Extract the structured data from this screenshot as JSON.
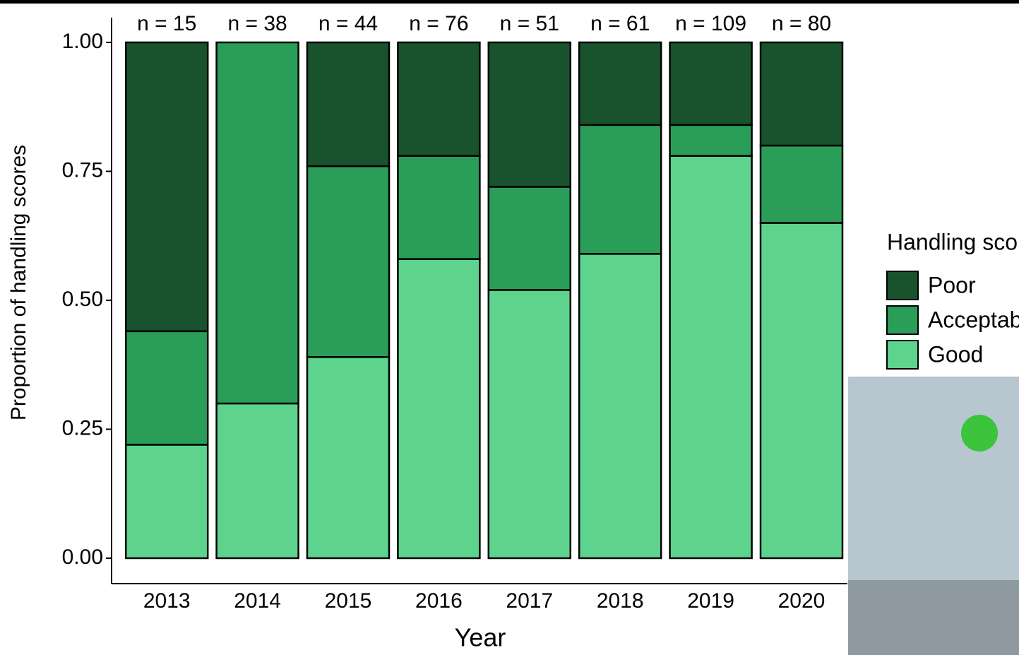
{
  "chart_data": {
    "type": "stacked_bar",
    "y_label": "Proportion of handling scores",
    "x_label": "Year",
    "legend_title": "Handling score",
    "categories": [
      "2013",
      "2014",
      "2015",
      "2016",
      "2017",
      "2018",
      "2019",
      "2020"
    ],
    "annotations": [
      "n = 15",
      "n = 38",
      "n = 44",
      "n = 76",
      "n = 51",
      "n = 61",
      "n = 109",
      "n = 80"
    ],
    "series": [
      {
        "name": "Good",
        "color": "#5dd38e",
        "values": [
          0.22,
          0.3,
          0.39,
          0.58,
          0.52,
          0.59,
          0.78,
          0.65
        ]
      },
      {
        "name": "Acceptable",
        "color": "#2a9d58",
        "values": [
          0.22,
          0.7,
          0.37,
          0.2,
          0.2,
          0.25,
          0.06,
          0.15
        ]
      },
      {
        "name": "Poor",
        "color": "#18532e",
        "values": [
          0.56,
          0,
          0.24,
          0.22,
          0.28,
          0.16,
          0.16,
          0.2
        ]
      }
    ],
    "ylim": [
      0,
      1
    ],
    "yticks": [
      {
        "value": 0,
        "label": "0.00"
      },
      {
        "value": 0.25,
        "label": "0.25"
      },
      {
        "value": 0.5,
        "label": "0.50"
      },
      {
        "value": 0.75,
        "label": "0.75"
      },
      {
        "value": 1,
        "label": "1.00"
      }
    ],
    "legend": "right"
  }
}
